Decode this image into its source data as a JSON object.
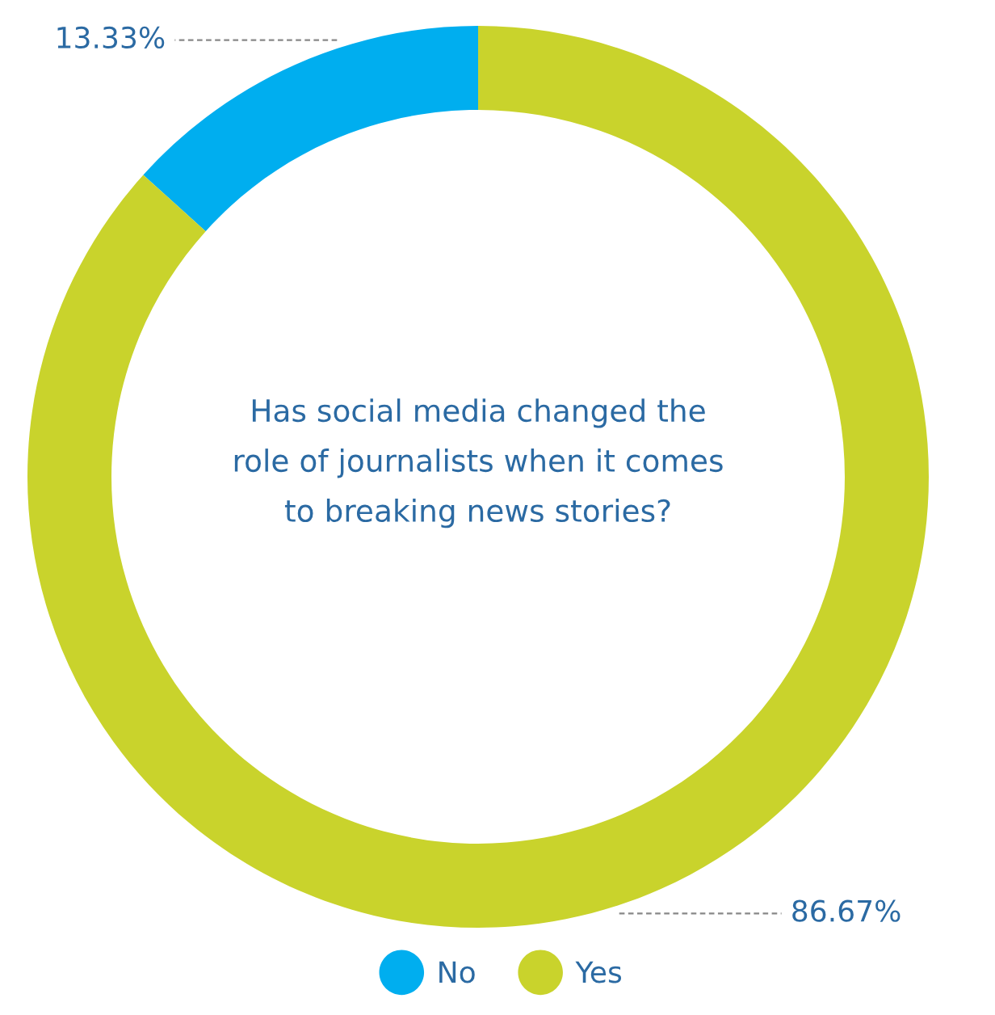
{
  "chart_data": {
    "type": "donut",
    "title": "Has social media changed the\nrole of journalists when it comes\nto breaking news stories?",
    "categories": [
      "No",
      "Yes"
    ],
    "values": [
      13.33,
      86.67
    ],
    "colors": [
      "#00aeef",
      "#c9d32c"
    ],
    "value_labels": [
      "13.33%",
      "86.67%"
    ],
    "legend": "bottom"
  }
}
